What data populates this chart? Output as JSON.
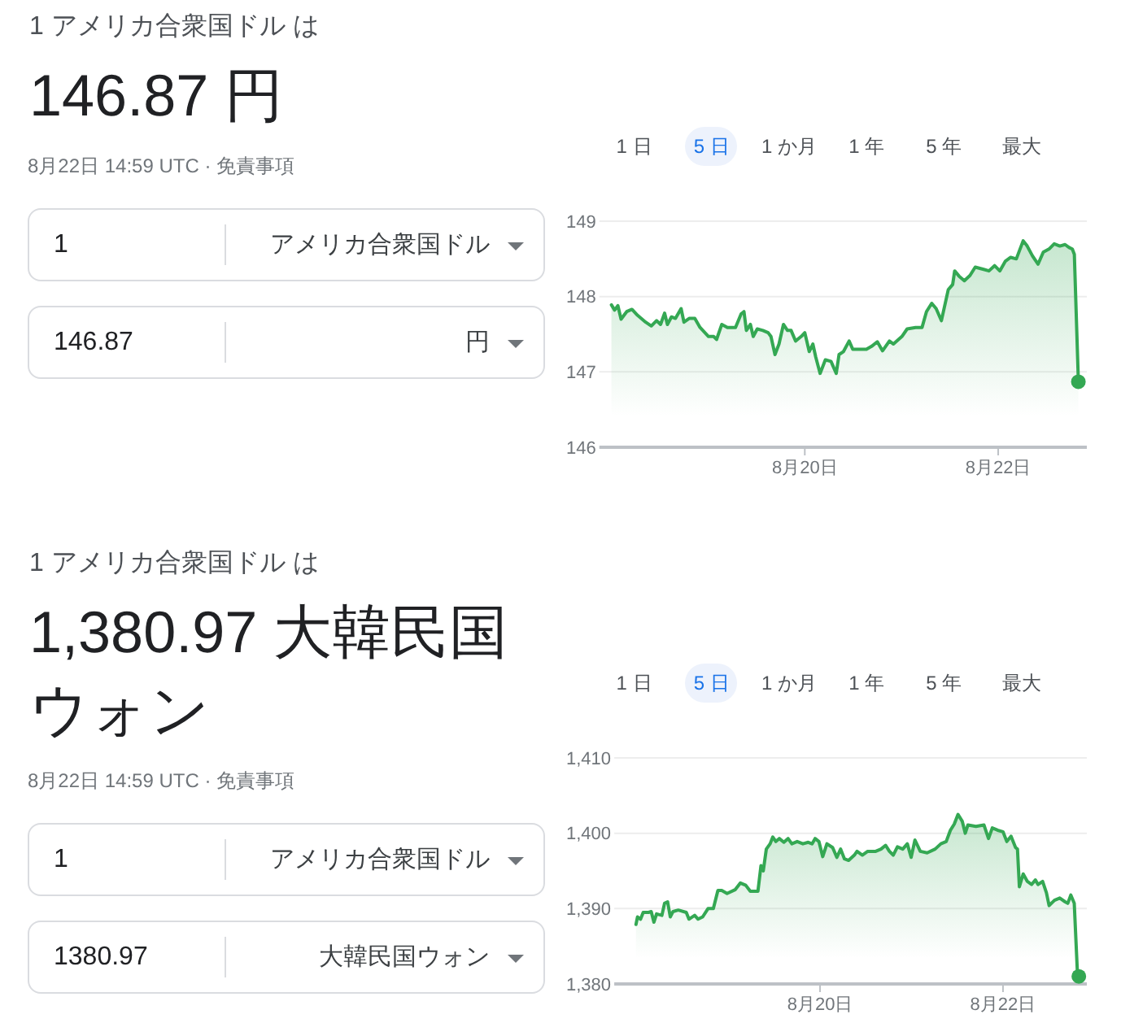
{
  "chart_data": [
    {
      "type": "area",
      "title": "146.87 円",
      "annotations": [
        "1 アメリカ合衆国ドル は",
        "8月22日 14:59 UTC · 免責事項",
        "1",
        "アメリカ合衆国ドル",
        "146.87",
        "円",
        "1 日",
        "5 日",
        "1 か月",
        "1 年",
        "5 年",
        "最大"
      ],
      "series": [
        {
          "color": "#34a853",
          "x": [
            "--08-18T00:00",
            "--08-18T00:48",
            "--08-18T01:36",
            "--08-18T02:24",
            "--08-18T03:48",
            "--08-18T05:06",
            "--08-18T06:30",
            "--08-18T08:30",
            "--08-18T09:54",
            "--08-18T11:12",
            "--08-18T12:12",
            "--08-18T13:12",
            "--08-18T13:54",
            "--08-18T14:54",
            "--08-18T15:54",
            "--08-18T17:18",
            "--08-18T18:00",
            "--08-18T19:18",
            "--08-18T20:42",
            "--08-18T22:00",
            "--08-19T00:06",
            "--08-19T01:24",
            "--08-19T02:06",
            "--08-19T03:24",
            "--08-19T04:48",
            "--08-19T06:48",
            "--08-19T08:12",
            "--08-19T08:54",
            "--08-19T09:30",
            "--08-19T10:30",
            "--08-19T11:12",
            "--08-19T12:12",
            "--08-19T13:36",
            "--08-19T14:54",
            "--08-19T15:36",
            "--08-19T16:36",
            "--08-19T17:36",
            "--08-19T18:42",
            "--08-19T19:42",
            "--08-19T20:36",
            "--08-19T21:42",
            "--08-19T23:06",
            "--08-20T00:00",
            "--08-20T01:06",
            "--08-20T02:00",
            "--08-20T02:42",
            "--08-20T03:48",
            "--08-20T05:06",
            "--08-20T06:30",
            "--08-20T07:48",
            "--08-20T08:30",
            "--08-20T09:36",
            "--08-20T11:00",
            "--08-20T11:54",
            "--08-20T13:54",
            "--08-20T15:18",
            "--08-20T16:36",
            "--08-20T18:00",
            "--08-20T19:18",
            "--08-20T21:00",
            "--08-20T22:00",
            "--08-21T00:06",
            "--08-21T01:24",
            "--08-21T03:30",
            "--08-21T05:06",
            "--08-21T06:12",
            "--08-21T07:30",
            "--08-21T08:36",
            "--08-21T09:54",
            "--08-21T11:36",
            "--08-21T12:42",
            "--08-21T13:12",
            "--08-21T14:18",
            "--08-21T15:36",
            "--08-21T17:00",
            "--08-21T18:18",
            "--08-21T20:24",
            "--08-21T21:42",
            "--08-21T23:06",
            "--08-22T00:24",
            "--08-22T01:48",
            "--08-22T03:06",
            "--08-22T04:30",
            "--08-22T06:12",
            "--08-22T07:12",
            "--08-22T08:30",
            "--08-22T09:54",
            "--08-22T11:12",
            "--08-22T12:36",
            "--08-22T13:54",
            "--08-22T15:18",
            "--08-22T16:36",
            "--08-22T17:36",
            "--08-22T18:24",
            "--08-22T18:54",
            "--08-22T19:54"
          ],
          "values": [
            147.89,
            147.82,
            147.88,
            147.7,
            147.8,
            147.83,
            147.75,
            147.66,
            147.61,
            147.68,
            147.63,
            147.78,
            147.63,
            147.73,
            147.71,
            147.84,
            147.66,
            147.71,
            147.71,
            147.59,
            147.47,
            147.47,
            147.43,
            147.63,
            147.59,
            147.59,
            147.77,
            147.8,
            147.55,
            147.63,
            147.47,
            147.57,
            147.55,
            147.52,
            147.47,
            147.23,
            147.37,
            147.63,
            147.55,
            147.55,
            147.41,
            147.47,
            147.52,
            147.27,
            147.37,
            147.2,
            146.98,
            147.16,
            147.14,
            146.98,
            147.23,
            147.27,
            147.41,
            147.3,
            147.3,
            147.3,
            147.34,
            147.4,
            147.28,
            147.41,
            147.37,
            147.47,
            147.57,
            147.59,
            147.59,
            147.8,
            147.91,
            147.84,
            147.68,
            148.09,
            148.16,
            148.34,
            148.27,
            148.21,
            148.28,
            148.39,
            148.36,
            148.34,
            148.41,
            148.34,
            148.47,
            148.52,
            148.5,
            148.74,
            148.67,
            148.54,
            148.43,
            148.59,
            148.63,
            148.7,
            148.67,
            148.69,
            148.65,
            148.63,
            148.56,
            146.87
          ]
        },
        {
          "type": "scatter",
          "color": "#34a853",
          "marker": "circle",
          "x": [
            "--08-22T19:54"
          ],
          "values": [
            146.87
          ]
        }
      ],
      "xlim": [
        "--08-17T21:00",
        "--08-22T22:00"
      ],
      "xticks": [
        {
          "value": "--08-20",
          "label": "8月20日"
        },
        {
          "value": "--08-22",
          "label": "8月22日"
        }
      ],
      "ylim": [
        146,
        149
      ],
      "yticks": [
        146,
        147,
        148,
        149
      ],
      "grid": "y"
    },
    {
      "type": "area",
      "title": "1,380.97 大韓民国ウォン",
      "annotations": [
        "1 アメリカ合衆国ドル は",
        "8月22日 14:59 UTC · 免責事項",
        "1",
        "アメリカ合衆国ドル",
        "1380.97",
        "大韓民国ウォン",
        "1 日",
        "5 日",
        "1 か月",
        "1 年",
        "5 年",
        "最大"
      ],
      "series": [
        {
          "color": "#34a853",
          "x": [
            "--08-17T23:42",
            "--08-18T00:06",
            "--08-18T00:54",
            "--08-18T01:36",
            "--08-18T03:00",
            "--08-18T03:42",
            "--08-18T04:24",
            "--08-18T05:06",
            "--08-18T06:30",
            "--08-18T07:12",
            "--08-18T08:00",
            "--08-18T08:42",
            "--08-18T09:24",
            "--08-18T10:48",
            "--08-18T12:54",
            "--08-18T13:36",
            "--08-18T15:06",
            "--08-18T16:00",
            "--08-18T17:12",
            "--08-18T18:36",
            "--08-18T20:00",
            "--08-18T21:12",
            "--08-18T22:12",
            "--08-18T23:36",
            "--08-19T01:42",
            "--08-19T03:06",
            "--08-19T04:30",
            "--08-19T05:42",
            "--08-19T07:42",
            "--08-19T08:30",
            "--08-19T09:06",
            "--08-19T09:54",
            "--08-19T10:54",
            "--08-19T11:36",
            "--08-19T12:24",
            "--08-19T13:18",
            "--08-19T14:30",
            "--08-19T15:36",
            "--08-19T16:36",
            "--08-19T18:00",
            "--08-19T19:30",
            "--08-19T20:54",
            "--08-19T21:54",
            "--08-19T22:42",
            "--08-19T23:42",
            "--08-20T00:42",
            "--08-20T01:48",
            "--08-20T03:18",
            "--08-20T04:24",
            "--08-20T05:24",
            "--08-20T06:24",
            "--08-20T07:30",
            "--08-20T09:00",
            "--08-20T09:42",
            "--08-20T11:06",
            "--08-20T12:30",
            "--08-20T14:36",
            "--08-20T16:00",
            "--08-20T17:12",
            "--08-20T18:12",
            "--08-20T19:12",
            "--08-20T20:18",
            "--08-20T21:42",
            "--08-20T22:54",
            "--08-20T23:54",
            "--08-21T00:54",
            "--08-21T02:18",
            "--08-21T04:06",
            "--08-21T06:12",
            "--08-21T07:42",
            "--08-21T09:06",
            "--08-21T10:12",
            "--08-21T11:12",
            "--08-21T12:12",
            "--08-21T13:18",
            "--08-21T14:06",
            "--08-21T14:48",
            "--08-21T16:54",
            "--08-21T19:00",
            "--08-21T20:12",
            "--08-21T21:12",
            "--08-21T22:36",
            "--08-22T00:00",
            "--08-22T01:00",
            "--08-22T02:06",
            "--08-22T03:18",
            "--08-22T03:48",
            "--08-22T04:18",
            "--08-22T05:18",
            "--08-22T06:24",
            "--08-22T07:30",
            "--08-22T08:30",
            "--08-22T09:12",
            "--08-22T10:24",
            "--08-22T11:24",
            "--08-22T12:06",
            "--08-22T13:30",
            "--08-22T14:54",
            "--08-22T16:18",
            "--08-22T17:00",
            "--08-22T17:48",
            "--08-22T18:42",
            "--08-22T19:30",
            "--08-22T19:54"
          ],
          "values": [
            1387.9,
            1388.9,
            1388.6,
            1389.5,
            1389.5,
            1389.6,
            1388.2,
            1389.3,
            1389.1,
            1390.7,
            1390.9,
            1388.9,
            1389.6,
            1389.8,
            1389.5,
            1388.6,
            1389.1,
            1388.6,
            1388.9,
            1390.0,
            1390.0,
            1392.4,
            1392.4,
            1392.0,
            1392.5,
            1393.4,
            1393.1,
            1392.3,
            1392.3,
            1395.7,
            1395.0,
            1397.9,
            1398.6,
            1399.5,
            1398.9,
            1399.3,
            1398.8,
            1399.3,
            1398.6,
            1398.9,
            1398.6,
            1398.8,
            1398.6,
            1399.3,
            1398.9,
            1396.9,
            1398.6,
            1398.1,
            1396.8,
            1397.9,
            1396.6,
            1396.4,
            1397.1,
            1397.6,
            1397.1,
            1397.6,
            1397.6,
            1397.9,
            1398.4,
            1397.6,
            1397.1,
            1398.2,
            1397.9,
            1398.6,
            1396.8,
            1399.1,
            1397.6,
            1397.4,
            1397.9,
            1398.6,
            1398.9,
            1400.4,
            1401.2,
            1402.5,
            1401.6,
            1400.0,
            1401.1,
            1400.9,
            1401.1,
            1399.3,
            1400.7,
            1400.4,
            1400.2,
            1398.9,
            1399.6,
            1398.1,
            1397.9,
            1392.9,
            1394.6,
            1393.6,
            1393.2,
            1393.8,
            1393.2,
            1393.6,
            1392.1,
            1390.4,
            1391.1,
            1391.4,
            1390.9,
            1390.7,
            1391.8,
            1390.7,
            1381.8,
            1381.0
          ]
        },
        {
          "type": "scatter",
          "color": "#34a853",
          "marker": "circle",
          "x": [
            "--08-22T19:54"
          ],
          "values": [
            1381.0
          ]
        }
      ],
      "xlim": [
        "--08-17T18:00",
        "--08-22T22:00"
      ],
      "xticks": [
        {
          "value": "--08-20",
          "label": "8月20日"
        },
        {
          "value": "--08-22",
          "label": "8月22日"
        }
      ],
      "ylim": [
        1380,
        1410
      ],
      "yticks": [
        {
          "value": 1380,
          "label": "1,380"
        },
        {
          "value": 1390,
          "label": "1,390"
        },
        {
          "value": 1400,
          "label": "1,400"
        },
        {
          "value": 1410,
          "label": "1,410"
        }
      ],
      "grid": "y"
    }
  ]
}
